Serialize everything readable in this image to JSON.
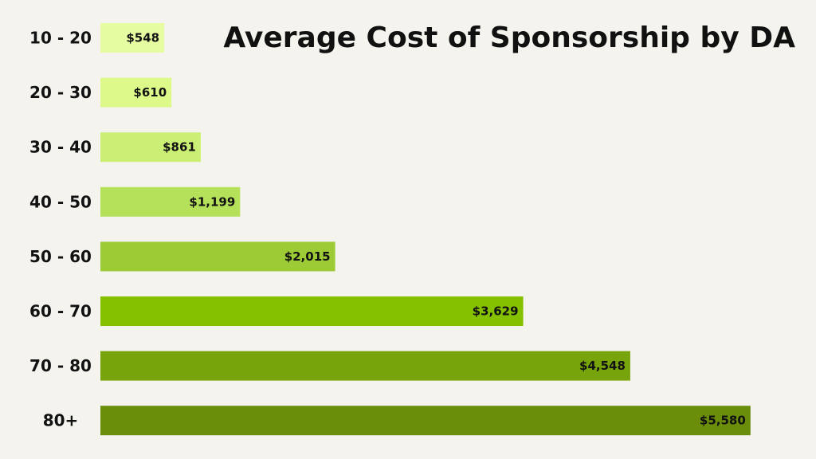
{
  "chart_data": {
    "type": "bar",
    "orientation": "horizontal",
    "title": "Average Cost of Sponsorship by DA",
    "xlabel": "",
    "ylabel": "",
    "categories": [
      "10 - 20",
      "20 - 30",
      "30 - 40",
      "40 - 50",
      "50 - 60",
      "60 - 70",
      "70 - 80",
      "80+"
    ],
    "values": [
      548,
      610,
      861,
      1199,
      2015,
      3629,
      4548,
      5580
    ],
    "value_labels": [
      "$548",
      "$610",
      "$861",
      "$1,199",
      "$2,015",
      "$3,629",
      "$4,548",
      "$5,580"
    ],
    "colors": [
      "#e6fca0",
      "#dcf98a",
      "#cbef74",
      "#b5e05a",
      "#9dcb36",
      "#86c100",
      "#77a30b",
      "#6a8e0a"
    ],
    "grid": false,
    "legend": "none"
  }
}
